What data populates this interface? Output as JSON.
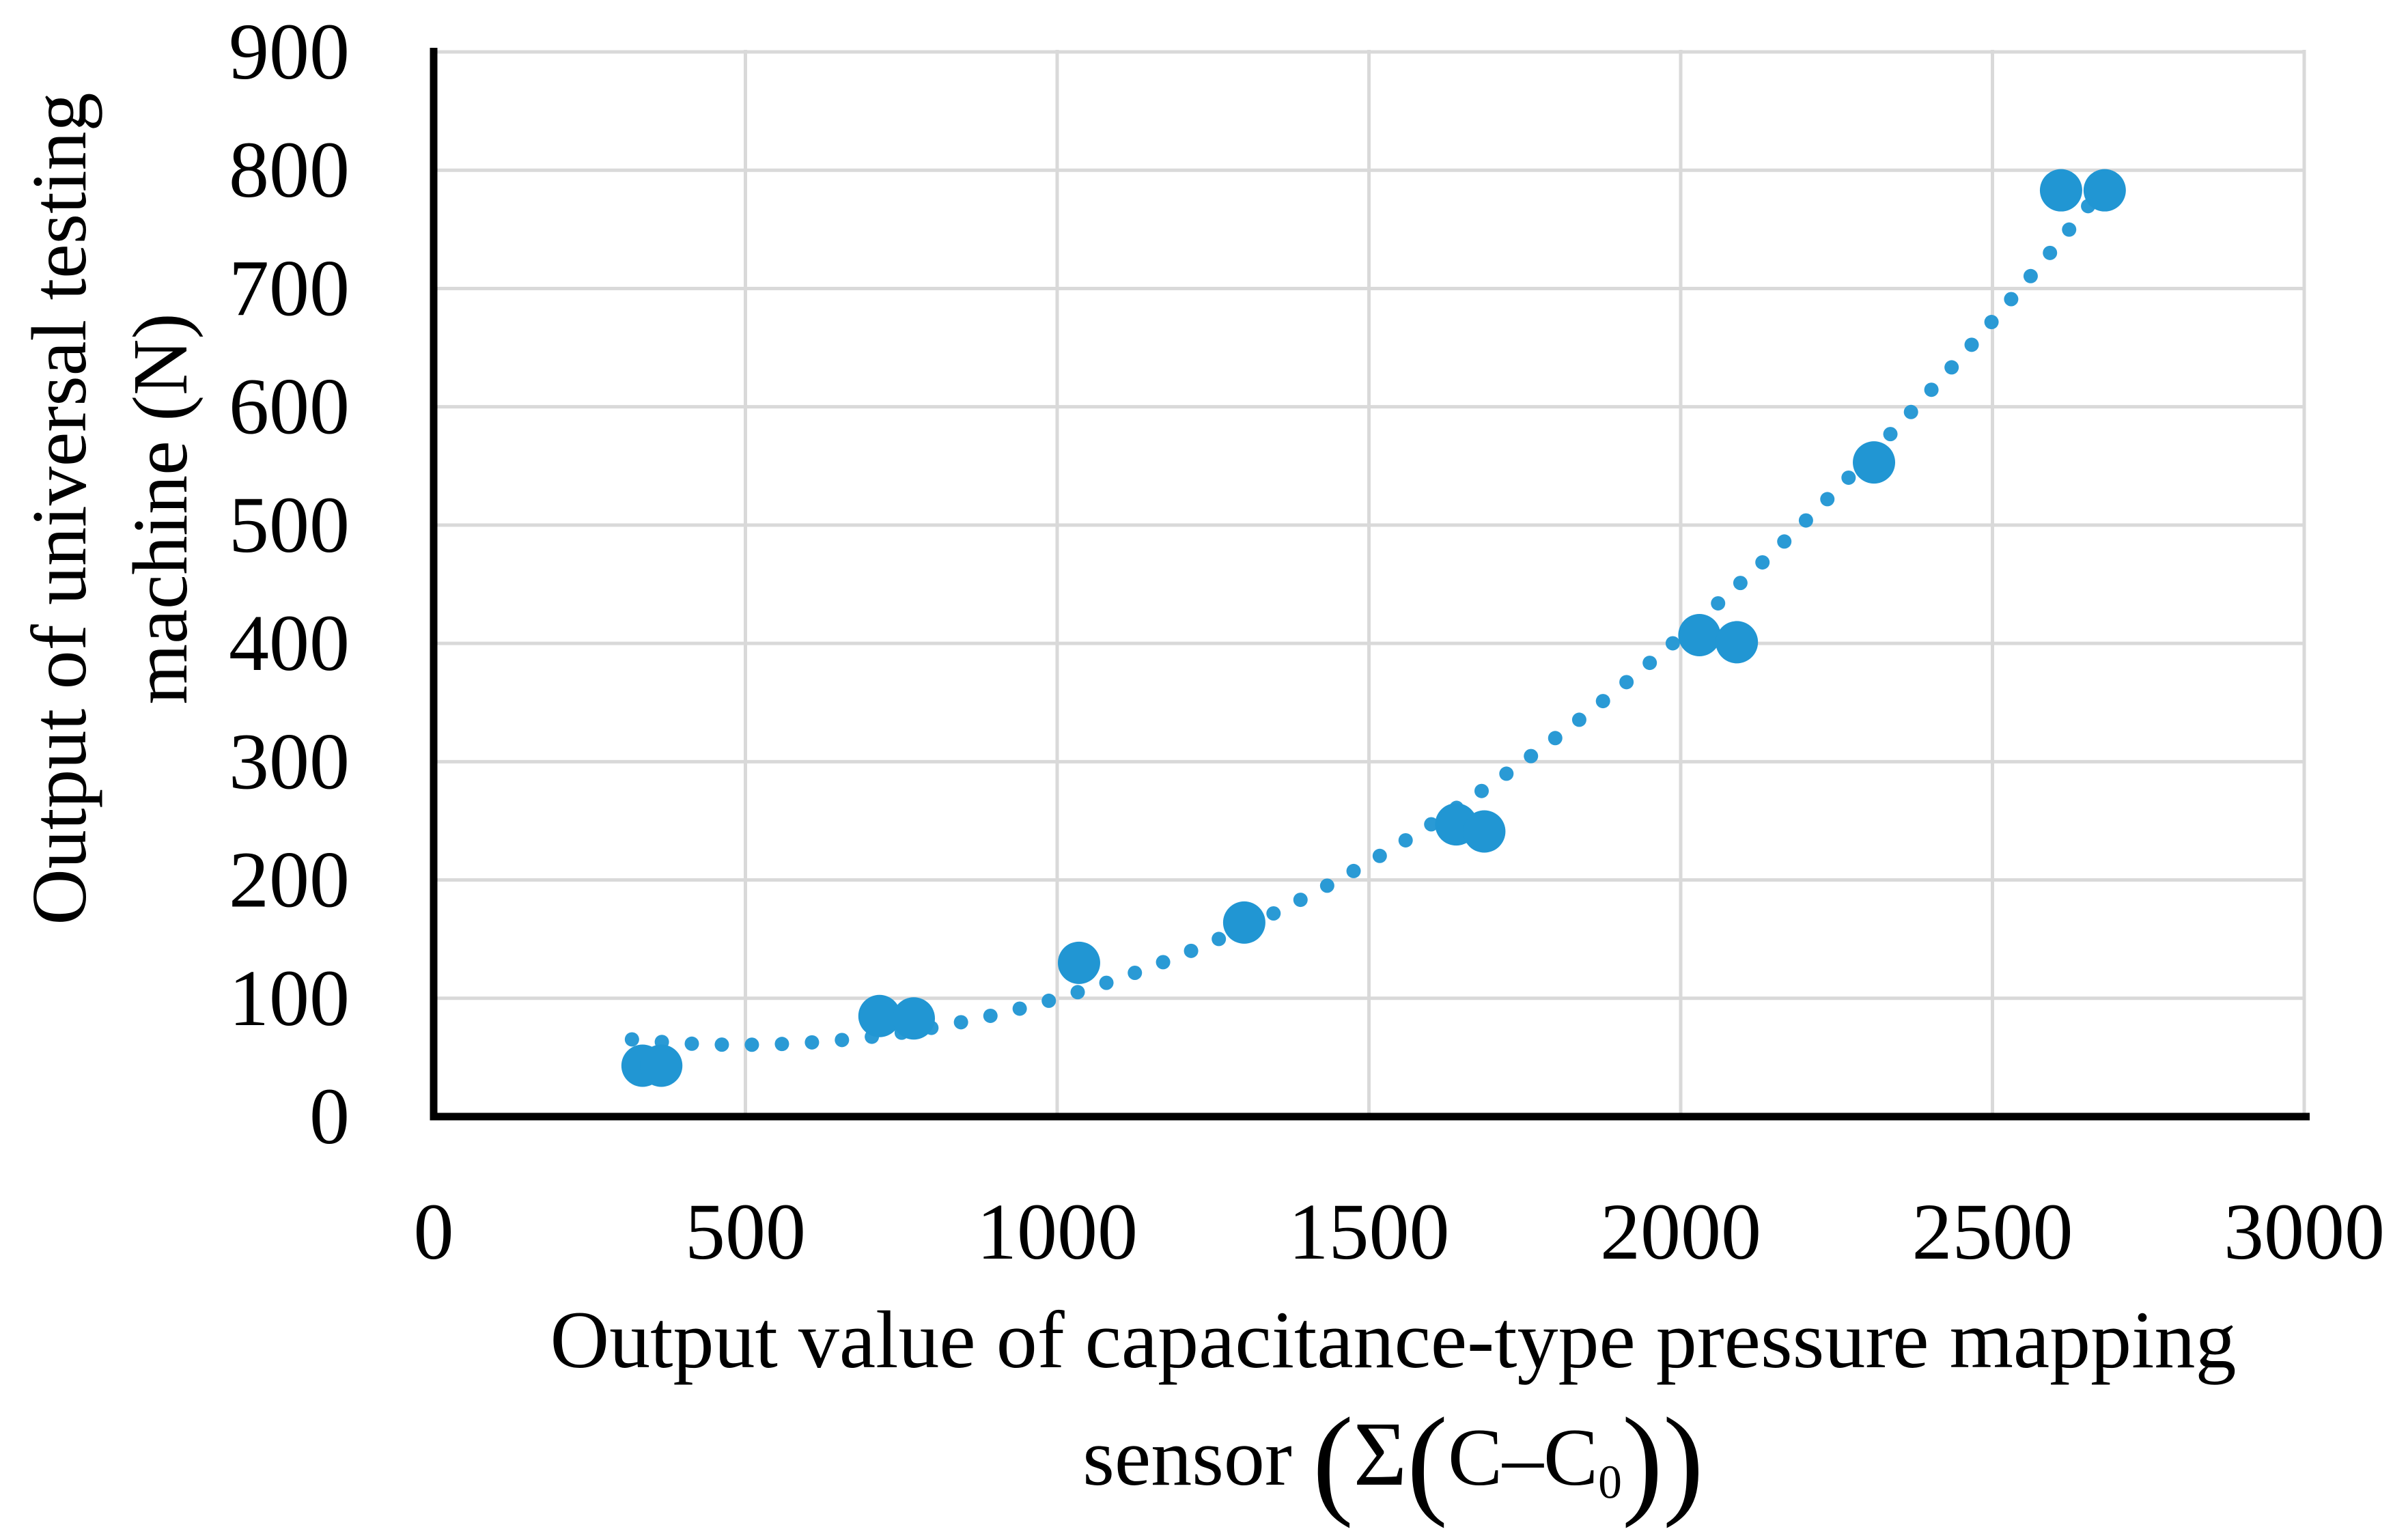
{
  "chart_data": {
    "type": "scatter",
    "title": "",
    "xlabel_line1": "Output value of capacitance-type pressure mapping",
    "xlabel_line2_full": "sensor (Σ(C–C₀))",
    "xlabel2": {
      "prefix": "sensor ",
      "open1": "(",
      "sigma": "Σ",
      "open2": "(",
      "body": "C–C",
      "sub": "0",
      "close2": ")",
      "close1": ")"
    },
    "ylabel_line1": "Output of universal testing",
    "ylabel_line2": "machine (N)",
    "xlim": [
      0,
      3000
    ],
    "ylim": [
      0,
      900
    ],
    "x_ticks": [
      0,
      500,
      1000,
      1500,
      2000,
      2500,
      3000
    ],
    "y_ticks": [
      0,
      100,
      200,
      300,
      400,
      500,
      600,
      700,
      800,
      900
    ],
    "grid": true,
    "legend": "none",
    "points": [
      {
        "x": 335,
        "y": 43
      },
      {
        "x": 365,
        "y": 43
      },
      {
        "x": 715,
        "y": 85
      },
      {
        "x": 770,
        "y": 83
      },
      {
        "x": 1035,
        "y": 130
      },
      {
        "x": 1300,
        "y": 164
      },
      {
        "x": 1640,
        "y": 247
      },
      {
        "x": 1685,
        "y": 241
      },
      {
        "x": 2030,
        "y": 407
      },
      {
        "x": 2090,
        "y": 401
      },
      {
        "x": 2310,
        "y": 553
      },
      {
        "x": 2610,
        "y": 783
      },
      {
        "x": 2680,
        "y": 783
      }
    ],
    "trendline": {
      "style": "dotted",
      "type": "polynomial-degree-2",
      "a": 0.00015165,
      "b": -0.149,
      "c": 97.3,
      "x_start": 318,
      "x_end": 2700
    },
    "colors": {
      "marker": "#2196d3",
      "trend": "#2a9ad5",
      "grid": "#d9d9d9",
      "axis": "#000000",
      "text": "#000000"
    }
  }
}
